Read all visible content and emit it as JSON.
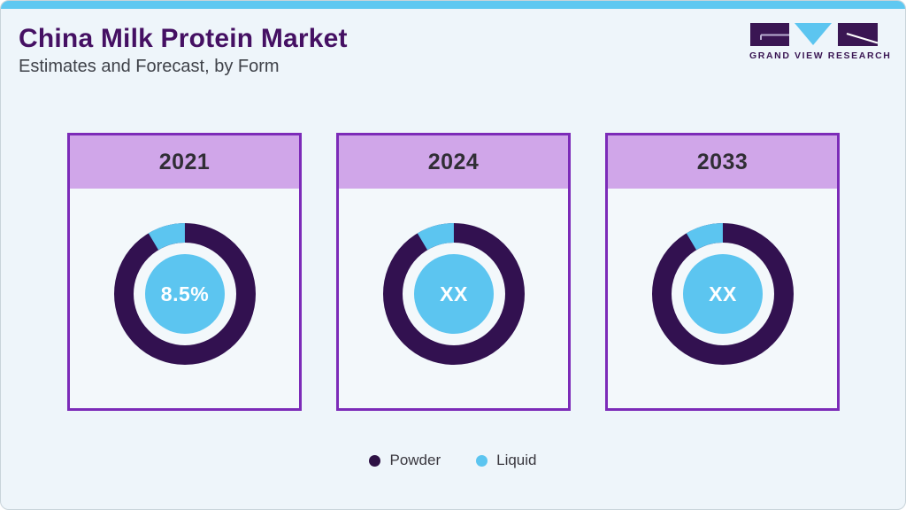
{
  "page": {
    "title": "China Milk Protein Market",
    "subtitle": "Estimates and Forecast, by Form"
  },
  "logo": {
    "text": "GRAND VIEW RESEARCH",
    "purple": "#3a1653",
    "blue": "#5cc5f0"
  },
  "colors": {
    "powder": "#321150",
    "liquid": "#5cc5f0",
    "card_border": "#7c2bb8",
    "card_band": "#d0a6e9",
    "accent_stripe": "#5fc8f1",
    "title": "#451063"
  },
  "chart_data": {
    "type": "pie",
    "title": "China Milk Protein Market, Estimates and Forecast, by Form",
    "legend_position": "bottom",
    "categories": [
      "Powder",
      "Liquid"
    ],
    "charts": [
      {
        "year": "2021",
        "center_label": "8.5%",
        "values_pct": {
          "Powder": 91.5,
          "Liquid": 8.5
        },
        "arc_pct": 8.5
      },
      {
        "year": "2024",
        "center_label": "XX",
        "values_pct": {
          "Powder": "XX",
          "Liquid": "XX"
        },
        "arc_pct": 8.5
      },
      {
        "year": "2033",
        "center_label": "XX",
        "values_pct": {
          "Powder": "XX",
          "Liquid": "XX"
        },
        "arc_pct": 8.5
      }
    ]
  },
  "legend": {
    "items": [
      {
        "label": "Powder",
        "color": "#2e1245"
      },
      {
        "label": "Liquid",
        "color": "#5cc5f0"
      }
    ]
  }
}
